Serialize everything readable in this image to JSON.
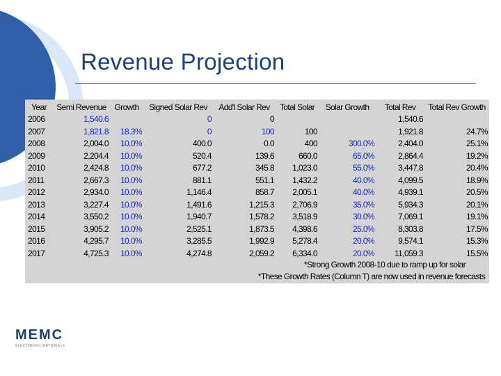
{
  "slide": {
    "title": "Revenue Projection"
  },
  "table": {
    "headers": [
      "Year",
      "Semi Revenue",
      "Growth",
      "Signed Solar Rev",
      "Add'l Solar Rev",
      "Total Solar",
      "Solar Growth",
      "Total Rev",
      "Total Rev Growth"
    ],
    "rows": [
      [
        "2006",
        "1,540.6",
        "",
        "0",
        "0",
        "",
        "",
        "1,540.6",
        ""
      ],
      [
        "2007",
        "1,821.8",
        "18.3%",
        "0",
        "100",
        "100",
        "",
        "1,921.8",
        "24.7%"
      ],
      [
        "2008",
        "2,004.0",
        "10.0%",
        "400.0",
        "0.0",
        "400",
        "300.0%",
        "2,404.0",
        "25.1%"
      ],
      [
        "2009",
        "2,204.4",
        "10.0%",
        "520.4",
        "139.6",
        "660.0",
        "65.0%",
        "2,864.4",
        "19.2%"
      ],
      [
        "2010",
        "2,424.8",
        "10.0%",
        "677.2",
        "345.8",
        "1,023.0",
        "55.0%",
        "3,447.8",
        "20.4%"
      ],
      [
        "2011",
        "2,667.3",
        "10.0%",
        "881.1",
        "551.1",
        "1,432.2",
        "40.0%",
        "4,099.5",
        "18.9%"
      ],
      [
        "2012",
        "2,934.0",
        "10.0%",
        "1,146.4",
        "858.7",
        "2,005.1",
        "40.0%",
        "4,939.1",
        "20.5%"
      ],
      [
        "2013",
        "3,227.4",
        "10.0%",
        "1,491.6",
        "1,215.3",
        "2,706.9",
        "35.0%",
        "5,934.3",
        "20.1%"
      ],
      [
        "2014",
        "3,550.2",
        "10.0%",
        "1,940.7",
        "1,578.2",
        "3,518.9",
        "30.0%",
        "7,069.1",
        "19.1%"
      ],
      [
        "2015",
        "3,905.2",
        "10.0%",
        "2,525.1",
        "1,873.5",
        "4,398.6",
        "25.0%",
        "8,303.8",
        "17.5%"
      ],
      [
        "2016",
        "4,295.7",
        "10.0%",
        "3,285.5",
        "1,992.9",
        "5,278.4",
        "20.0%",
        "9,574.1",
        "15.3%"
      ],
      [
        "2017",
        "4,725.3",
        "10.0%",
        "4,274.8",
        "2,059.2",
        "6,334.0",
        "20.0%",
        "11,059.3",
        "15.5%"
      ]
    ],
    "notes": [
      "*Strong Growth 2008-10 due to ramp up for solar",
      "*These Growth Rates (Column T) are now used in revenue forecasts"
    ]
  },
  "logo": {
    "name": "MEMC",
    "tagline": "ELECTRONIC MATERIALS"
  },
  "colors": {
    "title": "#1f3d7a",
    "highlight_text": "#1b27c9",
    "sheet_background": "#d4d4d4"
  }
}
